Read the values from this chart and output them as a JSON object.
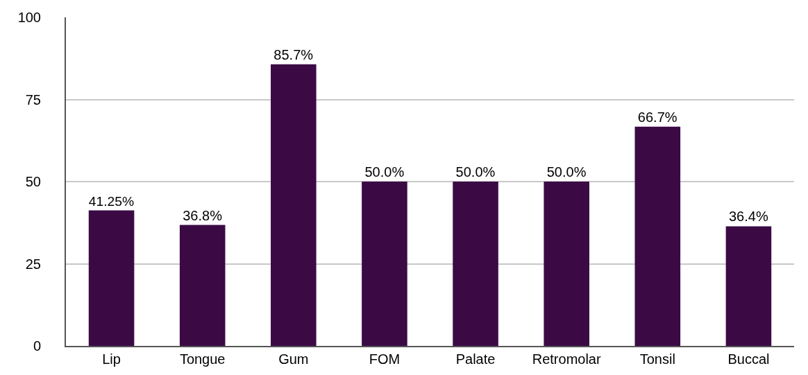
{
  "chart_data": {
    "type": "bar",
    "categories": [
      "Lip",
      "Tongue",
      "Gum",
      "FOM",
      "Palate",
      "Retromolar",
      "Tonsil",
      "Buccal"
    ],
    "values": [
      41.25,
      36.8,
      85.7,
      50.0,
      50.0,
      50.0,
      66.7,
      36.4
    ],
    "value_labels": [
      "41.25%",
      "36.8%",
      "85.7%",
      "50.0%",
      "50.0%",
      "50.0%",
      "66.7%",
      "36.4%"
    ],
    "color": "#3b0a45",
    "ylim": [
      0,
      100
    ],
    "yticks": [
      0,
      25,
      50,
      75,
      100
    ],
    "grid": "y",
    "legend": false
  }
}
